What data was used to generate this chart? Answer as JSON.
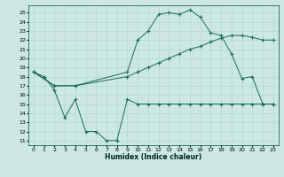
{
  "xlabel": "Humidex (Indice chaleur)",
  "bg_color": "#cde8e4",
  "grid_color": "#b0d8d0",
  "line_color": "#1a6b5a",
  "xlim": [
    -0.5,
    23.5
  ],
  "ylim": [
    10.5,
    25.8
  ],
  "yticks": [
    11,
    12,
    13,
    14,
    15,
    16,
    17,
    18,
    19,
    20,
    21,
    22,
    23,
    24,
    25
  ],
  "xticks": [
    0,
    1,
    2,
    3,
    4,
    5,
    6,
    7,
    8,
    9,
    10,
    11,
    12,
    13,
    14,
    15,
    16,
    17,
    18,
    19,
    20,
    21,
    22,
    23
  ],
  "series1_x": [
    0,
    1,
    2,
    3,
    4,
    5,
    6,
    7,
    8,
    9,
    10,
    11,
    12,
    13,
    14,
    15,
    16,
    17,
    18,
    19,
    20,
    21,
    22,
    23
  ],
  "series1_y": [
    18.5,
    18.0,
    16.5,
    13.5,
    15.5,
    12.0,
    12.0,
    11.0,
    11.0,
    15.5,
    15.0,
    15.0,
    15.0,
    15.0,
    15.0,
    15.0,
    15.0,
    15.0,
    15.0,
    15.0,
    15.0,
    15.0,
    15.0,
    15.0
  ],
  "series2_x": [
    0,
    2,
    4,
    9,
    10,
    11,
    12,
    13,
    14,
    15,
    16,
    17,
    18,
    19,
    20,
    21,
    22,
    23
  ],
  "series2_y": [
    18.5,
    17.0,
    17.0,
    18.0,
    18.5,
    19.0,
    19.5,
    20.0,
    20.5,
    21.0,
    21.3,
    21.8,
    22.2,
    22.5,
    22.5,
    22.3,
    22.0,
    22.0
  ],
  "series3_x": [
    0,
    2,
    4,
    9,
    10,
    11,
    12,
    13,
    14,
    15,
    16,
    17,
    18,
    19,
    20,
    21,
    22,
    23
  ],
  "series3_y": [
    18.5,
    17.0,
    17.0,
    18.5,
    22.0,
    23.0,
    24.8,
    25.0,
    24.8,
    25.3,
    24.5,
    22.8,
    22.5,
    20.5,
    17.8,
    18.0,
    15.0,
    15.0
  ]
}
